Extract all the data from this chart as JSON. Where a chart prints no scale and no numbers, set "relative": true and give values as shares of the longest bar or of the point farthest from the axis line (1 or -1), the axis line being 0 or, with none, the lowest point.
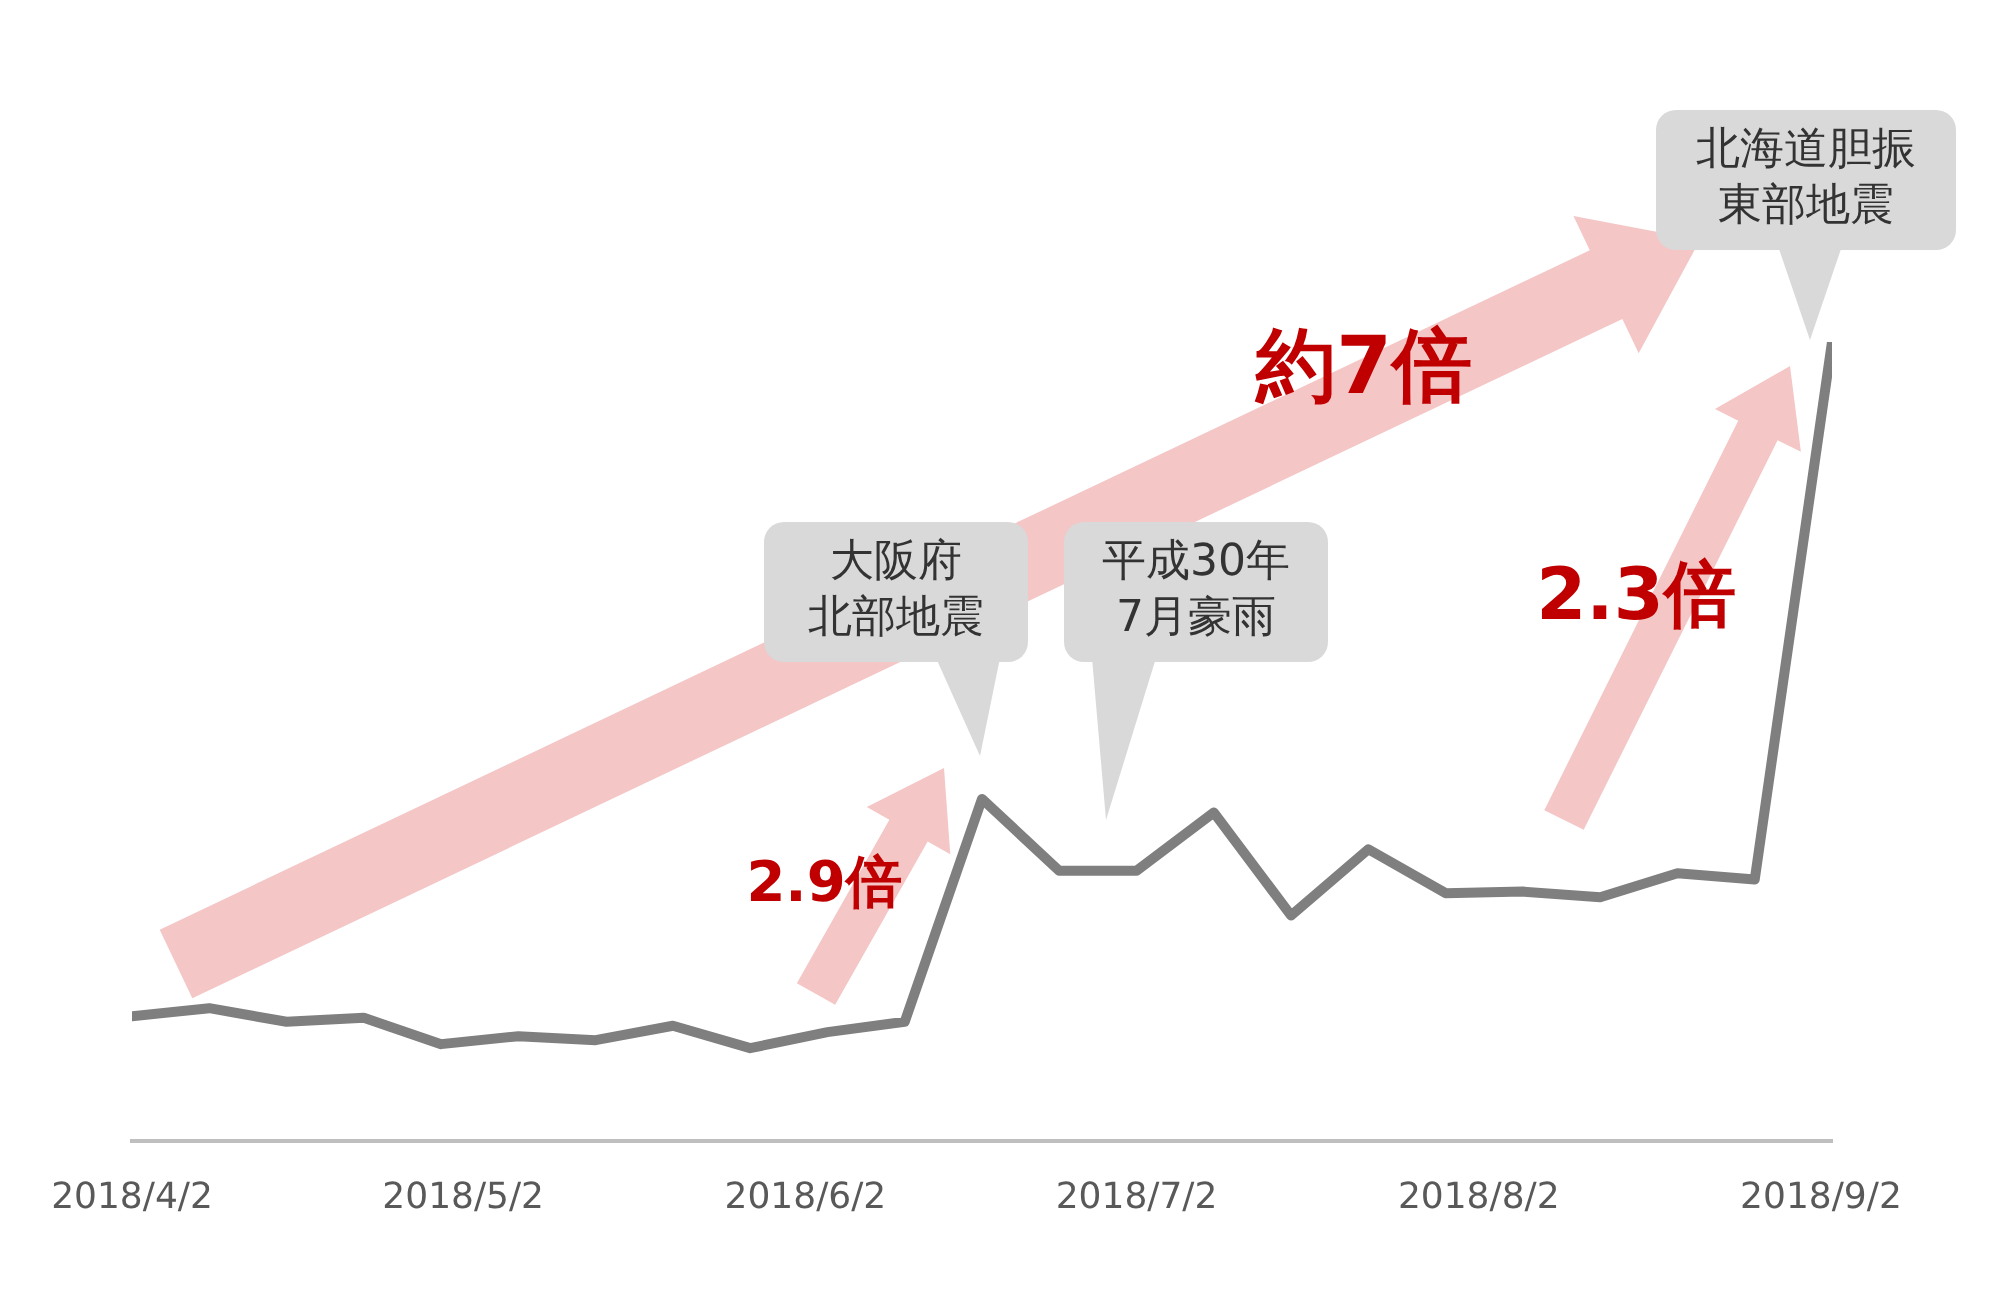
{
  "chart_data": {
    "type": "line",
    "relative": true,
    "x": [
      "2018-04-02",
      "2018-04-09",
      "2018-04-16",
      "2018-04-23",
      "2018-04-30",
      "2018-05-07",
      "2018-05-14",
      "2018-05-21",
      "2018-05-28",
      "2018-06-04",
      "2018-06-11",
      "2018-06-18",
      "2018-06-25",
      "2018-07-02",
      "2018-07-09",
      "2018-07-16",
      "2018-07-23",
      "2018-07-30",
      "2018-08-06",
      "2018-08-13",
      "2018-08-20",
      "2018-08-27",
      "2018-09-03"
    ],
    "series": [
      {
        "color": "#7f7f7f",
        "values": [
          0.156,
          0.166,
          0.149,
          0.154,
          0.121,
          0.131,
          0.126,
          0.144,
          0.116,
          0.136,
          0.149,
          0.428,
          0.338,
          0.338,
          0.411,
          0.282,
          0.365,
          0.31,
          0.312,
          0.305,
          0.335,
          0.327,
          1
        ]
      }
    ],
    "xlim": [
      "2018-04-02",
      "2018-09-03"
    ],
    "xticks": [
      {
        "value": "2018-04-02",
        "label": "2018/4/2"
      },
      {
        "value": "2018-05-02",
        "label": "2018/5/2"
      },
      {
        "value": "2018-06-02",
        "label": "2018/6/2"
      },
      {
        "value": "2018-07-02",
        "label": "2018/7/2"
      },
      {
        "value": "2018-08-02",
        "label": "2018/8/2"
      },
      {
        "value": "2018-09-02",
        "label": "2018/9/2"
      }
    ],
    "annotations": [
      "大阪府北部地震",
      "平成30年7月豪雨",
      "北海道胆振東部地震",
      "約7倍",
      "2.9倍",
      "2.3倍"
    ],
    "grid": false,
    "legend": false,
    "marker": "none",
    "line_style": "solid"
  }
}
